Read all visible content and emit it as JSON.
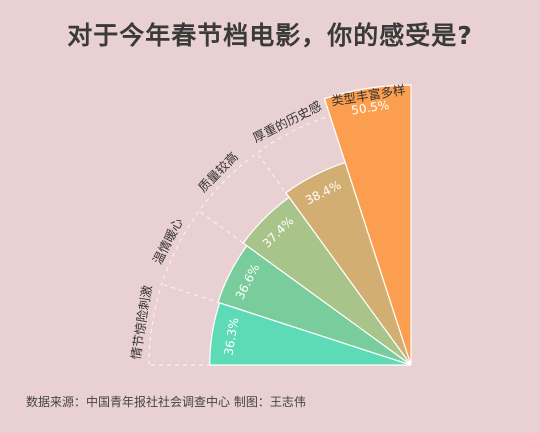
{
  "title": "对于今年春节档电影，你的感受是?",
  "source": "数据来源：中国青年报社社会调查中心 制图：王志伟",
  "colors": [
    "#5ddbb6",
    "#79cc9b",
    "#a9c48a",
    "#d3ae72",
    "#fc9e4f"
  ],
  "chart_data": {
    "type": "bar",
    "subtype": "radial-bar",
    "title": "对于今年春节档电影，你的感受是?",
    "categories": [
      "情节惊险刺激",
      "温情暖心",
      "质量较高",
      "厚重的历史感",
      "类型丰富多样"
    ],
    "values": [
      36.3,
      36.6,
      37.4,
      38.4,
      50.5
    ],
    "value_labels": [
      "36.3%",
      "36.6%",
      "37.4%",
      "38.4%",
      "50.5%"
    ],
    "unit": "%",
    "grid": true
  }
}
